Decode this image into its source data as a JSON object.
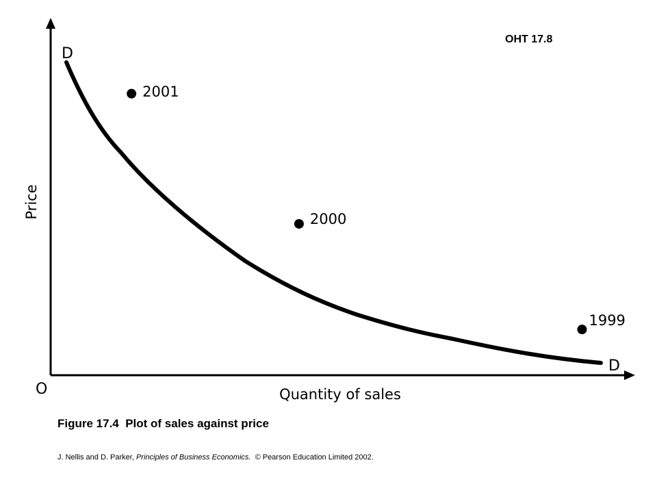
{
  "slide_id": "OHT 17.8",
  "caption": "Figure 17.4  Plot of sales against price",
  "credit": {
    "authors": "J. Nellis and D. Parker, ",
    "book_title": "Principles of Business Economics.",
    "rights": "  © Pearson Education Limited 2002."
  },
  "chart_data": {
    "type": "line",
    "xlabel": "Quantity of sales",
    "ylabel": "Price",
    "origin_label": "O",
    "series": [
      {
        "name": "D",
        "label_start": "D",
        "label_end": "D",
        "points": [
          {
            "year": "2001",
            "quantity": 1.4,
            "price": 8.0
          },
          {
            "year": "2000",
            "quantity": 4.3,
            "price": 4.3
          },
          {
            "year": "1999",
            "quantity": 9.2,
            "price": 1.3
          }
        ]
      }
    ],
    "grid": false,
    "legend": "none"
  }
}
